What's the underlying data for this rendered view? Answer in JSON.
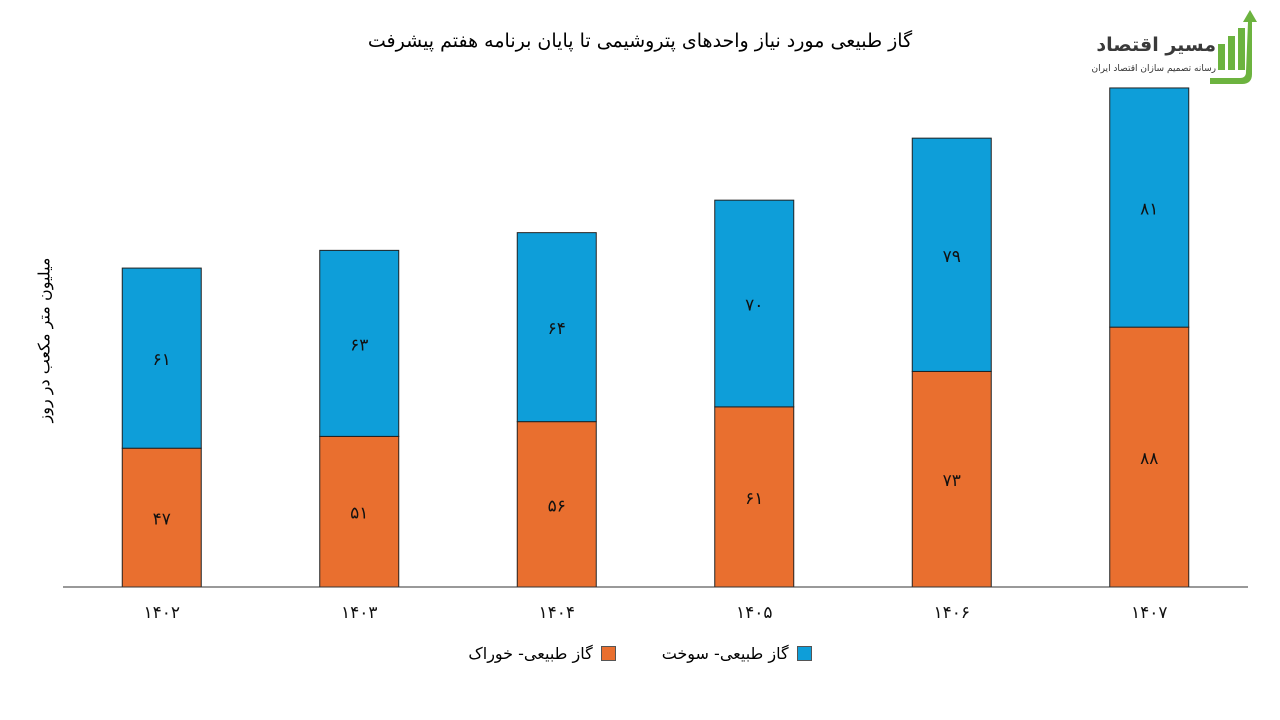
{
  "logo": {
    "name": "مسیر اقتصاد",
    "tagline": "رسانه تصمیم سازان اقتصاد ایران"
  },
  "colors": {
    "feed": "#E96F2F",
    "fuel": "#0E9ED9",
    "logo_green": "#6CB33F"
  },
  "chart_data": {
    "type": "bar",
    "stacked": true,
    "title": "گاز طبیعی مورد نیاز واحدهای پتروشیمی تا پایان برنامه هفتم پیشرفت",
    "ylabel": "میلیون متر مکعب در روز",
    "xlabel": "",
    "categories": [
      "۱۴۰۲",
      "۱۴۰۳",
      "۱۴۰۴",
      "۱۴۰۵",
      "۱۴۰۶",
      "۱۴۰۷"
    ],
    "series": [
      {
        "name": "گاز طبیعی- خوراک",
        "values": [
          47,
          51,
          56,
          61,
          73,
          88
        ],
        "labels": [
          "۴۷",
          "۵۱",
          "۵۶",
          "۶۱",
          "۷۳",
          "۸۸"
        ]
      },
      {
        "name": "گاز طبیعی- سوخت",
        "values": [
          61,
          63,
          64,
          70,
          79,
          81
        ],
        "labels": [
          "۶۱",
          "۶۳",
          "۶۴",
          "۷۰",
          "۷۹",
          "۸۱"
        ]
      }
    ],
    "ylim": [
      0,
      170
    ],
    "grid": false,
    "legend_position": "bottom"
  }
}
